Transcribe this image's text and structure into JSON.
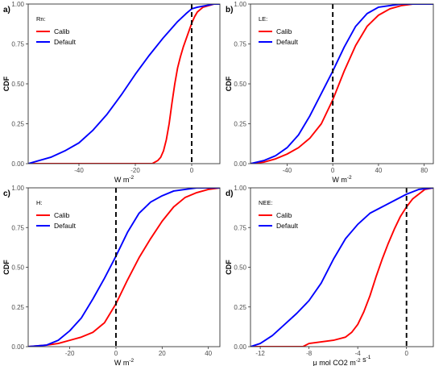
{
  "colors": {
    "calib": "#ff0000",
    "default": "#0000ff",
    "refline": "#000000"
  },
  "chart_data": [
    {
      "type": "line",
      "panel_label": "a)",
      "legend_title": "Rn:",
      "xlabel": "W m",
      "xlabel_sup": "-2",
      "ylabel": "CDF",
      "xlim": [
        -58,
        10
      ],
      "ylim": [
        0,
        1
      ],
      "xticks": [
        -40,
        -20,
        0
      ],
      "yticks": [
        0.0,
        0.25,
        0.5,
        0.75,
        1.0
      ],
      "ytick_labels": [
        "0.00",
        "0.25",
        "0.50",
        "0.75",
        "1.00"
      ],
      "vline": 0,
      "legend_position": "top-left",
      "series": [
        {
          "name": "Calib",
          "color_key": "calib",
          "x": [
            -58,
            -20,
            -14,
            -12,
            -11,
            -10,
            -9,
            -8,
            -7,
            -6,
            -5,
            -4,
            -3,
            -2,
            -1,
            0,
            1,
            2,
            4,
            6,
            8,
            10
          ],
          "y": [
            0.0,
            0.0,
            0.0,
            0.02,
            0.04,
            0.08,
            0.15,
            0.25,
            0.38,
            0.5,
            0.6,
            0.67,
            0.73,
            0.78,
            0.83,
            0.88,
            0.92,
            0.95,
            0.98,
            0.99,
            1.0,
            1.0
          ]
        },
        {
          "name": "Default",
          "color_key": "default",
          "x": [
            -58,
            -50,
            -45,
            -40,
            -35,
            -30,
            -25,
            -20,
            -15,
            -10,
            -5,
            -2,
            0,
            2,
            5,
            8,
            10
          ],
          "y": [
            0.0,
            0.04,
            0.08,
            0.13,
            0.21,
            0.31,
            0.43,
            0.56,
            0.68,
            0.79,
            0.89,
            0.94,
            0.97,
            0.98,
            0.99,
            1.0,
            1.0
          ]
        }
      ]
    },
    {
      "type": "line",
      "panel_label": "b)",
      "legend_title": "LE:",
      "xlabel": "W m",
      "xlabel_sup": "-2",
      "ylabel": "CDF",
      "xlim": [
        -72,
        88
      ],
      "ylim": [
        0,
        1
      ],
      "xticks": [
        -40,
        0,
        40,
        80
      ],
      "yticks": [
        0.0,
        0.25,
        0.5,
        0.75,
        1.0
      ],
      "ytick_labels": [
        "0.00",
        "0.25",
        "0.50",
        "0.75",
        "1.00"
      ],
      "vline": 0,
      "legend_position": "top-left",
      "series": [
        {
          "name": "Calib",
          "color_key": "calib",
          "x": [
            -72,
            -60,
            -50,
            -40,
            -30,
            -20,
            -10,
            0,
            10,
            20,
            30,
            40,
            50,
            60,
            70,
            88
          ],
          "y": [
            0.0,
            0.01,
            0.03,
            0.06,
            0.1,
            0.16,
            0.25,
            0.4,
            0.58,
            0.74,
            0.86,
            0.93,
            0.97,
            0.99,
            1.0,
            1.0
          ]
        },
        {
          "name": "Default",
          "color_key": "default",
          "x": [
            -72,
            -60,
            -50,
            -40,
            -30,
            -20,
            -10,
            0,
            10,
            20,
            30,
            40,
            50,
            60,
            88
          ],
          "y": [
            0.0,
            0.02,
            0.05,
            0.1,
            0.18,
            0.3,
            0.44,
            0.58,
            0.73,
            0.86,
            0.94,
            0.98,
            0.99,
            1.0,
            1.0
          ]
        }
      ]
    },
    {
      "type": "line",
      "panel_label": "c)",
      "legend_title": "H:",
      "xlabel": "W m",
      "xlabel_sup": "-2",
      "ylabel": "CDF",
      "xlim": [
        -38,
        45
      ],
      "ylim": [
        0,
        1
      ],
      "xticks": [
        -20,
        0,
        20,
        40
      ],
      "yticks": [
        0.0,
        0.25,
        0.5,
        0.75,
        1.0
      ],
      "ytick_labels": [
        "0.00",
        "0.25",
        "0.50",
        "0.75",
        "1.00"
      ],
      "vline": 0,
      "legend_position": "top-left",
      "series": [
        {
          "name": "Calib",
          "color_key": "calib",
          "x": [
            -38,
            -30,
            -25,
            -20,
            -15,
            -10,
            -5,
            0,
            5,
            10,
            15,
            20,
            25,
            30,
            35,
            40,
            45
          ],
          "y": [
            0.0,
            0.01,
            0.02,
            0.04,
            0.06,
            0.09,
            0.15,
            0.27,
            0.42,
            0.56,
            0.68,
            0.79,
            0.88,
            0.94,
            0.97,
            0.99,
            1.0
          ]
        },
        {
          "name": "Default",
          "color_key": "default",
          "x": [
            -38,
            -30,
            -25,
            -20,
            -15,
            -10,
            -5,
            0,
            5,
            10,
            15,
            20,
            25,
            30,
            35,
            45
          ],
          "y": [
            0.0,
            0.01,
            0.04,
            0.1,
            0.18,
            0.3,
            0.43,
            0.57,
            0.72,
            0.84,
            0.91,
            0.95,
            0.98,
            0.99,
            1.0,
            1.0
          ]
        }
      ]
    },
    {
      "type": "line",
      "panel_label": "d)",
      "legend_title": "NEE:",
      "xlabel": "μ mol CO2 m",
      "xlabel_sup": "-2",
      "xlabel_tail": " s",
      "xlabel_tail_sup": "-1",
      "ylabel": "CDF",
      "xlim": [
        -12.8,
        2.2
      ],
      "ylim": [
        0,
        1
      ],
      "xticks": [
        -12,
        -8,
        -4,
        0
      ],
      "yticks": [
        0.0,
        0.25,
        0.5,
        0.75,
        1.0
      ],
      "ytick_labels": [
        "0.00",
        "0.25",
        "0.50",
        "0.75",
        "1.00"
      ],
      "vline": 0,
      "legend_position": "top-left",
      "series": [
        {
          "name": "Calib",
          "color_key": "calib",
          "x": [
            -12.8,
            -8.5,
            -8,
            -6,
            -5,
            -4.5,
            -4,
            -3.5,
            -3,
            -2.5,
            -2,
            -1.5,
            -1,
            -0.5,
            0,
            0.5,
            1,
            1.5,
            2.2
          ],
          "y": [
            0.0,
            0.0,
            0.02,
            0.04,
            0.06,
            0.09,
            0.14,
            0.22,
            0.32,
            0.44,
            0.55,
            0.65,
            0.74,
            0.82,
            0.88,
            0.93,
            0.96,
            0.99,
            1.0
          ]
        },
        {
          "name": "Default",
          "color_key": "default",
          "x": [
            -12.8,
            -12,
            -11,
            -10,
            -9,
            -8,
            -7,
            -6,
            -5,
            -4,
            -3,
            -2,
            -1,
            0,
            1,
            2.2
          ],
          "y": [
            0.0,
            0.02,
            0.07,
            0.14,
            0.21,
            0.29,
            0.4,
            0.55,
            0.68,
            0.77,
            0.84,
            0.88,
            0.92,
            0.96,
            0.99,
            1.0
          ]
        }
      ]
    }
  ]
}
